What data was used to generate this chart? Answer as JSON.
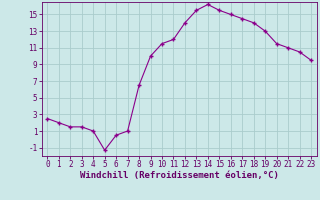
{
  "x": [
    0,
    1,
    2,
    3,
    4,
    5,
    6,
    7,
    8,
    9,
    10,
    11,
    12,
    13,
    14,
    15,
    16,
    17,
    18,
    19,
    20,
    21,
    22,
    23
  ],
  "y": [
    2.5,
    2.0,
    1.5,
    1.5,
    1.0,
    -1.3,
    0.5,
    1.0,
    6.5,
    10.0,
    11.5,
    12.0,
    14.0,
    15.5,
    16.2,
    15.5,
    15.0,
    14.5,
    14.0,
    13.0,
    11.5,
    11.0,
    10.5,
    9.5
  ],
  "line_color": "#8B008B",
  "marker": "+",
  "marker_size": 3,
  "bg_color": "#cce8e8",
  "grid_color": "#aacccc",
  "xlabel": "Windchill (Refroidissement éolien,°C)",
  "xlim": [
    -0.5,
    23.5
  ],
  "ylim": [
    -2.0,
    16.5
  ],
  "yticks": [
    -1,
    1,
    3,
    5,
    7,
    9,
    11,
    13,
    15
  ],
  "xticks": [
    0,
    1,
    2,
    3,
    4,
    5,
    6,
    7,
    8,
    9,
    10,
    11,
    12,
    13,
    14,
    15,
    16,
    17,
    18,
    19,
    20,
    21,
    22,
    23
  ],
  "tick_fontsize": 5.5,
  "label_fontsize": 6.5,
  "spine_color": "#660066"
}
